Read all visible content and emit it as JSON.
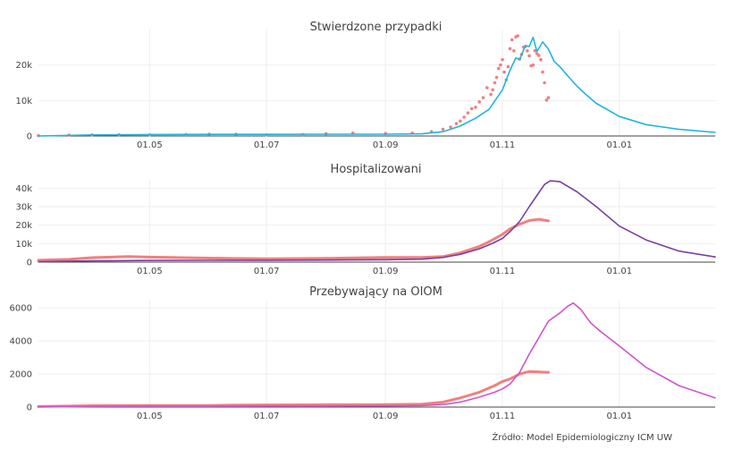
{
  "source": "Źródło: Model Epidemiologiczny ICM UW",
  "colors": {
    "observed": "#f08080",
    "cases_model": "#1fb5dc",
    "hosp_model": "#7b3fa0",
    "icu_model": "#cc55cc"
  },
  "chart_data": [
    {
      "type": "line",
      "title": "Stwierdzone przypadki",
      "x_range": [
        "2020-03-04",
        "2021-02-20"
      ],
      "x_ticks": [
        {
          "date": "2020-05-01",
          "label": "01.05"
        },
        {
          "date": "2020-07-01",
          "label": "01.07"
        },
        {
          "date": "2020-09-01",
          "label": "01.09"
        },
        {
          "date": "2020-11-01",
          "label": "01.11"
        },
        {
          "date": "2021-01-01",
          "label": "01.01"
        }
      ],
      "ylim": [
        0,
        30000
      ],
      "y_ticks": [
        {
          "value": 0,
          "label": "0"
        },
        {
          "value": 10000,
          "label": "10k"
        },
        {
          "value": 20000,
          "label": "20k"
        }
      ],
      "series": [
        {
          "role": "observed",
          "mode": "markers",
          "color": "#f08080",
          "x": [
            "2020-03-04",
            "2020-03-20",
            "2020-04-01",
            "2020-04-15",
            "2020-05-01",
            "2020-05-20",
            "2020-06-01",
            "2020-06-15",
            "2020-07-01",
            "2020-07-20",
            "2020-08-01",
            "2020-08-15",
            "2020-09-01",
            "2020-09-15",
            "2020-09-25",
            "2020-10-01",
            "2020-10-05",
            "2020-10-08",
            "2020-10-10",
            "2020-10-12",
            "2020-10-14",
            "2020-10-16",
            "2020-10-18",
            "2020-10-20",
            "2020-10-22",
            "2020-10-24",
            "2020-10-26",
            "2020-10-27",
            "2020-10-28",
            "2020-10-29",
            "2020-10-30",
            "2020-10-31",
            "2020-11-01",
            "2020-11-02",
            "2020-11-03",
            "2020-11-04",
            "2020-11-05",
            "2020-11-06",
            "2020-11-07",
            "2020-11-08",
            "2020-11-09",
            "2020-11-10",
            "2020-11-11",
            "2020-11-12",
            "2020-11-13",
            "2020-11-14",
            "2020-11-15",
            "2020-11-16",
            "2020-11-17",
            "2020-11-18",
            "2020-11-19",
            "2020-11-20",
            "2020-11-21",
            "2020-11-22",
            "2020-11-23",
            "2020-11-24",
            "2020-11-25"
          ],
          "y": [
            100,
            250,
            300,
            350,
            300,
            400,
            500,
            500,
            300,
            400,
            600,
            800,
            700,
            800,
            1200,
            1900,
            2500,
            3500,
            4200,
            5300,
            6500,
            7700,
            8100,
            9600,
            10800,
            13600,
            11700,
            13000,
            15000,
            16500,
            19000,
            20000,
            21500,
            18000,
            15800,
            19500,
            24600,
            27100,
            24000,
            27900,
            28200,
            21700,
            23000,
            25000,
            25200,
            24000,
            22600,
            19800,
            20000,
            24000,
            23200,
            22700,
            21500,
            18000,
            15000,
            10100,
            10800
          ]
        },
        {
          "role": "model",
          "mode": "line",
          "color": "#1fb5dc",
          "x": [
            "2020-03-04",
            "2020-04-01",
            "2020-05-01",
            "2020-06-01",
            "2020-07-01",
            "2020-08-01",
            "2020-09-01",
            "2020-09-20",
            "2020-10-01",
            "2020-10-10",
            "2020-10-18",
            "2020-10-25",
            "2020-11-01",
            "2020-11-05",
            "2020-11-08",
            "2020-11-10",
            "2020-11-13",
            "2020-11-15",
            "2020-11-17",
            "2020-11-19",
            "2020-11-22",
            "2020-11-25",
            "2020-11-28",
            "2020-12-01",
            "2020-12-05",
            "2020-12-10",
            "2020-12-15",
            "2020-12-20",
            "2021-01-01",
            "2021-01-15",
            "2021-02-01",
            "2021-02-20"
          ],
          "y": [
            0,
            300,
            400,
            450,
            450,
            500,
            500,
            600,
            1200,
            2800,
            5000,
            7500,
            13000,
            18500,
            22000,
            21500,
            25500,
            25200,
            27800,
            23800,
            26500,
            24500,
            21000,
            19500,
            17000,
            14000,
            11500,
            9200,
            5500,
            3200,
            1900,
            1000
          ]
        }
      ]
    },
    {
      "type": "line",
      "title": "Hospitalizowani",
      "x_range": [
        "2020-03-04",
        "2021-02-20"
      ],
      "x_ticks": [
        {
          "date": "2020-05-01",
          "label": "01.05"
        },
        {
          "date": "2020-07-01",
          "label": "01.07"
        },
        {
          "date": "2020-09-01",
          "label": "01.09"
        },
        {
          "date": "2020-11-01",
          "label": "01.11"
        },
        {
          "date": "2021-01-01",
          "label": "01.01"
        }
      ],
      "ylim": [
        0,
        45000
      ],
      "y_ticks": [
        {
          "value": 0,
          "label": "0"
        },
        {
          "value": 10000,
          "label": "10k"
        },
        {
          "value": 20000,
          "label": "20k"
        },
        {
          "value": 30000,
          "label": "30k"
        },
        {
          "value": 40000,
          "label": "40k"
        }
      ],
      "series": [
        {
          "role": "observed",
          "mode": "markers-line",
          "color": "#f08080",
          "x": [
            "2020-03-04",
            "2020-03-20",
            "2020-04-01",
            "2020-04-20",
            "2020-05-01",
            "2020-06-01",
            "2020-07-01",
            "2020-08-01",
            "2020-09-01",
            "2020-09-20",
            "2020-10-01",
            "2020-10-10",
            "2020-10-20",
            "2020-10-25",
            "2020-11-01",
            "2020-11-05",
            "2020-11-10",
            "2020-11-15",
            "2020-11-20",
            "2020-11-25"
          ],
          "y": [
            1000,
            1500,
            2400,
            3000,
            2700,
            2200,
            1800,
            2100,
            2500,
            2500,
            3000,
            5000,
            8500,
            11000,
            15000,
            18000,
            20500,
            22500,
            23200,
            22300
          ]
        },
        {
          "role": "model",
          "mode": "line",
          "color": "#7b3fa0",
          "x": [
            "2020-03-04",
            "2020-04-01",
            "2020-05-01",
            "2020-06-01",
            "2020-07-01",
            "2020-08-01",
            "2020-09-01",
            "2020-09-20",
            "2020-10-01",
            "2020-10-10",
            "2020-10-20",
            "2020-10-27",
            "2020-11-01",
            "2020-11-05",
            "2020-11-10",
            "2020-11-15",
            "2020-11-20",
            "2020-11-23",
            "2020-11-26",
            "2020-12-01",
            "2020-12-10",
            "2020-12-20",
            "2021-01-01",
            "2021-01-15",
            "2021-02-01",
            "2021-02-20"
          ],
          "y": [
            200,
            700,
            900,
            950,
            1000,
            1100,
            1300,
            1600,
            2500,
            4200,
            7200,
            10200,
            12800,
            16500,
            22000,
            30000,
            37500,
            42000,
            44000,
            43500,
            38000,
            30000,
            19500,
            12000,
            6000,
            2800
          ]
        }
      ]
    },
    {
      "type": "line",
      "title": "Przebywający na OIOM",
      "x_range": [
        "2020-03-04",
        "2021-02-20"
      ],
      "x_ticks": [
        {
          "date": "2020-05-01",
          "label": "01.05"
        },
        {
          "date": "2020-07-01",
          "label": "01.07"
        },
        {
          "date": "2020-09-01",
          "label": "01.09"
        },
        {
          "date": "2020-11-01",
          "label": "01.11"
        },
        {
          "date": "2021-01-01",
          "label": "01.01"
        }
      ],
      "ylim": [
        0,
        6500
      ],
      "y_ticks": [
        {
          "value": 0,
          "label": "0"
        },
        {
          "value": 2000,
          "label": "2000"
        },
        {
          "value": 4000,
          "label": "4000"
        },
        {
          "value": 6000,
          "label": "6000"
        }
      ],
      "series": [
        {
          "role": "observed",
          "mode": "markers-line",
          "color": "#f08080",
          "x": [
            "2020-03-04",
            "2020-04-01",
            "2020-05-01",
            "2020-06-01",
            "2020-06-15",
            "2020-07-01",
            "2020-08-01",
            "2020-09-01",
            "2020-09-20",
            "2020-10-01",
            "2020-10-10",
            "2020-10-20",
            "2020-10-28",
            "2020-11-01",
            "2020-11-05",
            "2020-11-10",
            "2020-11-15",
            "2020-11-20",
            "2020-11-25"
          ],
          "y": [
            30,
            80,
            100,
            100,
            120,
            130,
            140,
            150,
            180,
            300,
            550,
            900,
            1300,
            1550,
            1700,
            2000,
            2150,
            2130,
            2100
          ]
        },
        {
          "role": "model",
          "mode": "line",
          "color": "#cc55cc",
          "x": [
            "2020-03-04",
            "2020-04-01",
            "2020-05-01",
            "2020-06-01",
            "2020-07-01",
            "2020-08-01",
            "2020-09-01",
            "2020-09-20",
            "2020-10-01",
            "2020-10-10",
            "2020-10-20",
            "2020-10-28",
            "2020-11-01",
            "2020-11-05",
            "2020-11-10",
            "2020-11-15",
            "2020-11-20",
            "2020-11-25",
            "2020-12-01",
            "2020-12-05",
            "2020-12-08",
            "2020-12-12",
            "2020-12-17",
            "2020-12-22",
            "2021-01-01",
            "2021-01-15",
            "2021-02-01",
            "2021-02-20"
          ],
          "y": [
            20,
            40,
            50,
            50,
            60,
            60,
            70,
            90,
            150,
            300,
            600,
            900,
            1100,
            1400,
            2100,
            3200,
            4200,
            5200,
            5700,
            6100,
            6300,
            5900,
            5100,
            4600,
            3700,
            2400,
            1300,
            550
          ]
        }
      ]
    }
  ]
}
